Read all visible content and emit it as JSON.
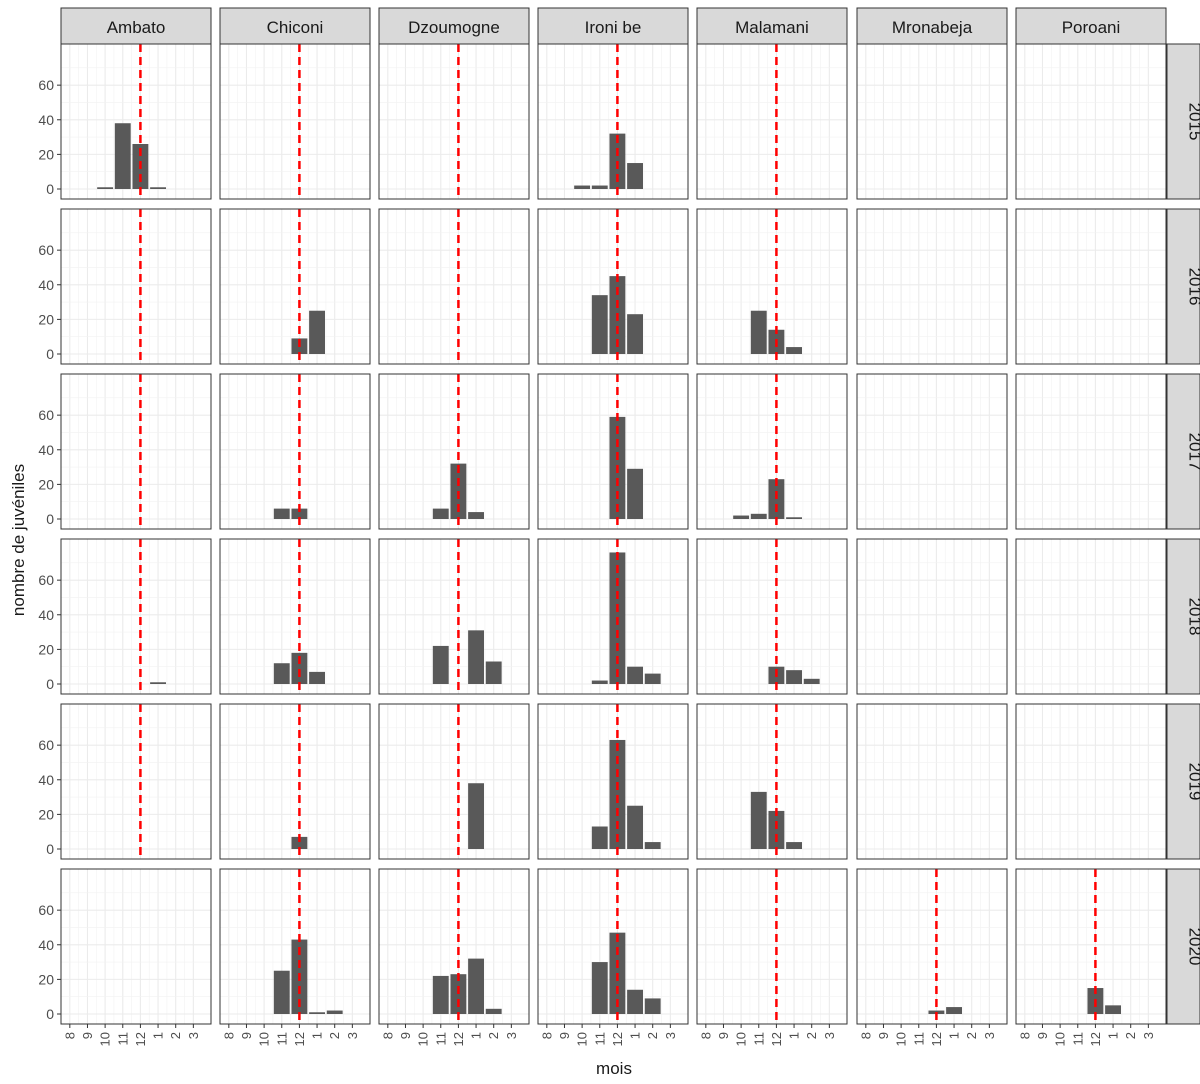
{
  "chart_data": {
    "type": "bar",
    "kind": "faceted bar grid (columns = site, rows = year)",
    "ylabel": "nombre de juvéniles",
    "xlabel": "mois",
    "x_ticks": [
      "8",
      "9",
      "10",
      "11",
      "12",
      "1",
      "2",
      "3"
    ],
    "y_ticks": [
      0,
      20,
      40,
      60
    ],
    "ylim": [
      0,
      78
    ],
    "reference_line": {
      "x": "12",
      "color": "#ff0000",
      "style": "dashed"
    },
    "grid": true,
    "colors": {
      "bar": "#595959",
      "strip_bg": "#d9d9d9",
      "grid": "#ebebeb",
      "panel_border": "#333333",
      "ref_line": "#ff0000"
    },
    "columns": [
      "Ambato",
      "Chiconi",
      "Dzoumogne",
      "Ironi be",
      "Malamani",
      "Mronabeja",
      "Poroani"
    ],
    "rows": [
      "2015",
      "2016",
      "2017",
      "2018",
      "2019",
      "2020"
    ],
    "panels": [
      {
        "col": "Ambato",
        "row": "2015",
        "show_ref": true,
        "bars": [
          {
            "month": "10",
            "value": 1
          },
          {
            "month": "11",
            "value": 38
          },
          {
            "month": "12",
            "value": 26
          },
          {
            "month": "1",
            "value": 1
          }
        ]
      },
      {
        "col": "Chiconi",
        "row": "2015",
        "show_ref": true,
        "bars": []
      },
      {
        "col": "Dzoumogne",
        "row": "2015",
        "show_ref": true,
        "bars": []
      },
      {
        "col": "Ironi be",
        "row": "2015",
        "show_ref": true,
        "bars": [
          {
            "month": "10",
            "value": 2
          },
          {
            "month": "11",
            "value": 2
          },
          {
            "month": "12",
            "value": 32
          },
          {
            "month": "1",
            "value": 15
          }
        ]
      },
      {
        "col": "Malamani",
        "row": "2015",
        "show_ref": true,
        "bars": []
      },
      {
        "col": "Mronabeja",
        "row": "2015",
        "show_ref": false,
        "bars": []
      },
      {
        "col": "Poroani",
        "row": "2015",
        "show_ref": false,
        "bars": []
      },
      {
        "col": "Ambato",
        "row": "2016",
        "show_ref": true,
        "bars": []
      },
      {
        "col": "Chiconi",
        "row": "2016",
        "show_ref": true,
        "bars": [
          {
            "month": "12",
            "value": 9
          },
          {
            "month": "1",
            "value": 25
          }
        ]
      },
      {
        "col": "Dzoumogne",
        "row": "2016",
        "show_ref": true,
        "bars": []
      },
      {
        "col": "Ironi be",
        "row": "2016",
        "show_ref": true,
        "bars": [
          {
            "month": "11",
            "value": 34
          },
          {
            "month": "12",
            "value": 45
          },
          {
            "month": "1",
            "value": 23
          }
        ]
      },
      {
        "col": "Malamani",
        "row": "2016",
        "show_ref": true,
        "bars": [
          {
            "month": "11",
            "value": 25
          },
          {
            "month": "12",
            "value": 14
          },
          {
            "month": "1",
            "value": 4
          }
        ]
      },
      {
        "col": "Mronabeja",
        "row": "2016",
        "show_ref": false,
        "bars": []
      },
      {
        "col": "Poroani",
        "row": "2016",
        "show_ref": false,
        "bars": []
      },
      {
        "col": "Ambato",
        "row": "2017",
        "show_ref": true,
        "bars": []
      },
      {
        "col": "Chiconi",
        "row": "2017",
        "show_ref": true,
        "bars": [
          {
            "month": "11",
            "value": 6
          },
          {
            "month": "12",
            "value": 6
          }
        ]
      },
      {
        "col": "Dzoumogne",
        "row": "2017",
        "show_ref": true,
        "bars": [
          {
            "month": "11",
            "value": 6
          },
          {
            "month": "12",
            "value": 32
          },
          {
            "month": "1",
            "value": 4
          }
        ]
      },
      {
        "col": "Ironi be",
        "row": "2017",
        "show_ref": true,
        "bars": [
          {
            "month": "12",
            "value": 59
          },
          {
            "month": "1",
            "value": 29
          }
        ]
      },
      {
        "col": "Malamani",
        "row": "2017",
        "show_ref": true,
        "bars": [
          {
            "month": "10",
            "value": 2
          },
          {
            "month": "11",
            "value": 3
          },
          {
            "month": "12",
            "value": 23
          },
          {
            "month": "1",
            "value": 1
          }
        ]
      },
      {
        "col": "Mronabeja",
        "row": "2017",
        "show_ref": false,
        "bars": []
      },
      {
        "col": "Poroani",
        "row": "2017",
        "show_ref": false,
        "bars": []
      },
      {
        "col": "Ambato",
        "row": "2018",
        "show_ref": true,
        "bars": [
          {
            "month": "1",
            "value": 1
          }
        ]
      },
      {
        "col": "Chiconi",
        "row": "2018",
        "show_ref": true,
        "bars": [
          {
            "month": "11",
            "value": 12
          },
          {
            "month": "12",
            "value": 18
          },
          {
            "month": "1",
            "value": 7
          }
        ]
      },
      {
        "col": "Dzoumogne",
        "row": "2018",
        "show_ref": true,
        "bars": [
          {
            "month": "11",
            "value": 22
          },
          {
            "month": "1",
            "value": 31
          },
          {
            "month": "2",
            "value": 13
          }
        ]
      },
      {
        "col": "Ironi be",
        "row": "2018",
        "show_ref": true,
        "bars": [
          {
            "month": "11",
            "value": 2
          },
          {
            "month": "12",
            "value": 76
          },
          {
            "month": "1",
            "value": 10
          },
          {
            "month": "2",
            "value": 6
          }
        ]
      },
      {
        "col": "Malamani",
        "row": "2018",
        "show_ref": true,
        "bars": [
          {
            "month": "12",
            "value": 10
          },
          {
            "month": "1",
            "value": 8
          },
          {
            "month": "2",
            "value": 3
          }
        ]
      },
      {
        "col": "Mronabeja",
        "row": "2018",
        "show_ref": false,
        "bars": []
      },
      {
        "col": "Poroani",
        "row": "2018",
        "show_ref": false,
        "bars": []
      },
      {
        "col": "Ambato",
        "row": "2019",
        "show_ref": true,
        "bars": []
      },
      {
        "col": "Chiconi",
        "row": "2019",
        "show_ref": true,
        "bars": [
          {
            "month": "12",
            "value": 7
          }
        ]
      },
      {
        "col": "Dzoumogne",
        "row": "2019",
        "show_ref": true,
        "bars": [
          {
            "month": "1",
            "value": 38
          }
        ]
      },
      {
        "col": "Ironi be",
        "row": "2019",
        "show_ref": true,
        "bars": [
          {
            "month": "11",
            "value": 13
          },
          {
            "month": "12",
            "value": 63
          },
          {
            "month": "1",
            "value": 25
          },
          {
            "month": "2",
            "value": 4
          }
        ]
      },
      {
        "col": "Malamani",
        "row": "2019",
        "show_ref": true,
        "bars": [
          {
            "month": "11",
            "value": 33
          },
          {
            "month": "12",
            "value": 22
          },
          {
            "month": "1",
            "value": 4
          }
        ]
      },
      {
        "col": "Mronabeja",
        "row": "2019",
        "show_ref": false,
        "bars": []
      },
      {
        "col": "Poroani",
        "row": "2019",
        "show_ref": false,
        "bars": []
      },
      {
        "col": "Ambato",
        "row": "2020",
        "show_ref": false,
        "bars": []
      },
      {
        "col": "Chiconi",
        "row": "2020",
        "show_ref": true,
        "bars": [
          {
            "month": "11",
            "value": 25
          },
          {
            "month": "12",
            "value": 43
          },
          {
            "month": "1",
            "value": 1
          },
          {
            "month": "2",
            "value": 2
          }
        ]
      },
      {
        "col": "Dzoumogne",
        "row": "2020",
        "show_ref": true,
        "bars": [
          {
            "month": "11",
            "value": 22
          },
          {
            "month": "12",
            "value": 23
          },
          {
            "month": "1",
            "value": 32
          },
          {
            "month": "2",
            "value": 3
          }
        ]
      },
      {
        "col": "Ironi be",
        "row": "2020",
        "show_ref": true,
        "bars": [
          {
            "month": "11",
            "value": 30
          },
          {
            "month": "12",
            "value": 47
          },
          {
            "month": "1",
            "value": 14
          },
          {
            "month": "2",
            "value": 9
          }
        ]
      },
      {
        "col": "Malamani",
        "row": "2020",
        "show_ref": true,
        "bars": []
      },
      {
        "col": "Mronabeja",
        "row": "2020",
        "show_ref": true,
        "bars": [
          {
            "month": "12",
            "value": 2
          },
          {
            "month": "1",
            "value": 4
          }
        ]
      },
      {
        "col": "Poroani",
        "row": "2020",
        "show_ref": true,
        "bars": [
          {
            "month": "12",
            "value": 15
          },
          {
            "month": "1",
            "value": 5
          }
        ]
      }
    ]
  }
}
